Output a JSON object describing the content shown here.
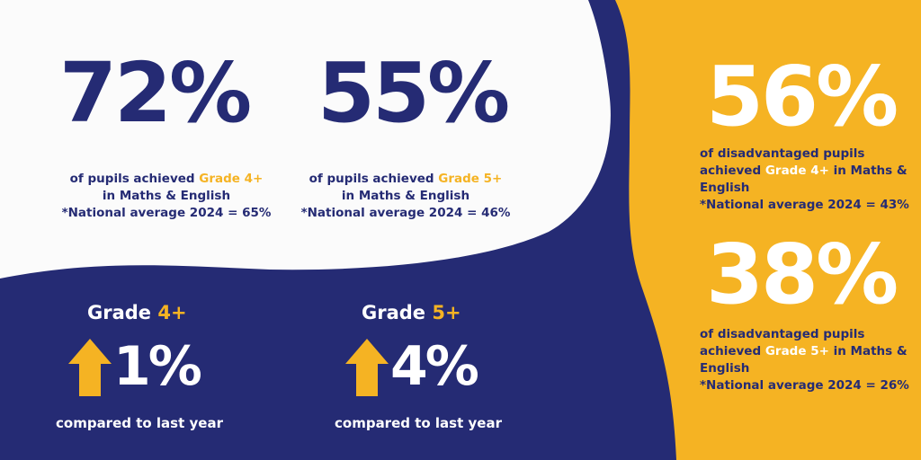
{
  "colors": {
    "navy": "#252b74",
    "yellow": "#f5b323",
    "white": "#ffffff",
    "background": "#fbfbfb"
  },
  "stat1": {
    "value": "72%",
    "line1_prefix": "of pupils achieved ",
    "line1_highlight": "Grade 4+",
    "line2": "in Maths & English",
    "line3": "*National average 2024 = 65%"
  },
  "stat2": {
    "value": "55%",
    "line1_prefix": "of pupils achieved ",
    "line1_highlight": "Grade 5+",
    "line2": "in Maths & English",
    "line3": "*National average 2024 = 46%"
  },
  "stat3": {
    "value": "56%",
    "line1": "of disadvantaged pupils",
    "line2_prefix": "achieved ",
    "line2_highlight": "Grade 4+",
    "line2_suffix": " in Maths &",
    "line3": "English",
    "line4": "*National average 2024 = 43%"
  },
  "stat4": {
    "value": "38%",
    "line1": "of disadvantaged pupils",
    "line2_prefix": "achieved ",
    "line2_highlight": "Grade 5+",
    "line2_suffix": " in Maths &",
    "line3": "English",
    "line4": "*National average 2024 = 26%"
  },
  "change1": {
    "title_prefix": "Grade ",
    "title_highlight": "4+",
    "value": "1%",
    "caption": "compared to last year",
    "icon": "up-arrow-icon"
  },
  "change2": {
    "title_prefix": "Grade ",
    "title_highlight": "5+",
    "value": "4%",
    "caption": "compared to last year",
    "icon": "up-arrow-icon"
  }
}
